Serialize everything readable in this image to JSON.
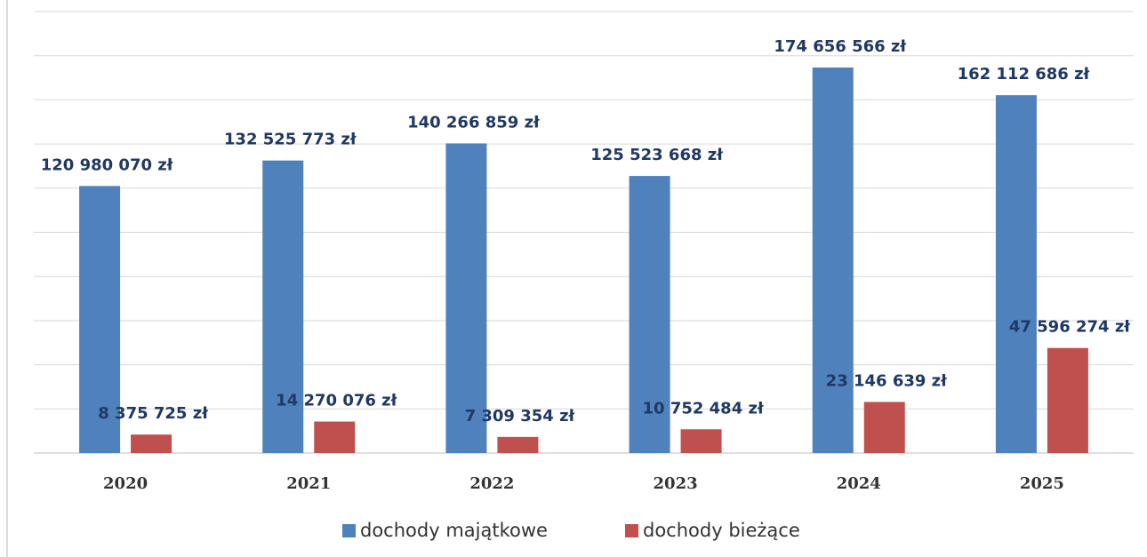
{
  "chart_data": {
    "type": "bar",
    "categories": [
      "2020",
      "2021",
      "2022",
      "2023",
      "2024",
      "2025"
    ],
    "series": [
      {
        "name": "dochody majątkowe",
        "color": "#4f81bd",
        "values": [
          120980070,
          132525773,
          140266859,
          125523668,
          174656566,
          162112686
        ],
        "value_labels": [
          "120 980 070 zł",
          "132 525 773 zł",
          "140 266 859 zł",
          "125 523 668 zł",
          "174 656 566 zł",
          "162 112 686 zł"
        ]
      },
      {
        "name": "dochody bieżące",
        "color": "#c0504d",
        "values": [
          8375725,
          14270076,
          7309354,
          10752484,
          23146639,
          47596274
        ],
        "value_labels": [
          "8 375 725 zł",
          "14 270 076 zł",
          "7 309 354 zł",
          "10 752 484 zł",
          "23 146 639 zł",
          "47 596 274 zł"
        ]
      }
    ],
    "ylim": [
      0,
      200000000
    ],
    "yticks": [
      0,
      20000000,
      40000000,
      60000000,
      80000000,
      100000000,
      120000000,
      140000000,
      160000000,
      180000000,
      200000000
    ],
    "grid": true,
    "legend": "bottom"
  }
}
